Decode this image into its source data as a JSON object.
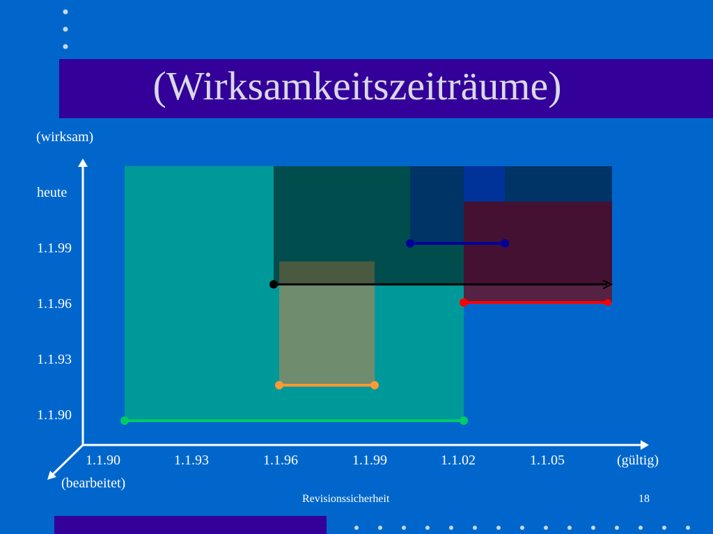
{
  "slide": {
    "title": "(Wirksamkeitszeiträume)",
    "footer_text": "Revisionssicherheit",
    "page_number": "18"
  },
  "y_axis": {
    "label": "(wirksam)",
    "ticks": [
      "heute",
      "1.1.99",
      "1.1.96",
      "1.1.93",
      "1.1.90"
    ]
  },
  "x_axis": {
    "label": "(gültig)",
    "ticks": [
      "1.1.90",
      "1.1.93",
      "1.1.96",
      "1.1.99",
      "1.1.02",
      "1.1.05"
    ]
  },
  "diagonal_axis": {
    "label": "(bearbeitet)"
  },
  "colors": {
    "background": "#0066cc",
    "title_band": "#330099",
    "region_teal": "#009999",
    "region_dark_green": "#004d4d",
    "region_navy": "#003366",
    "region_indigo": "#003399",
    "region_maroon": "#441133",
    "region_olive": "#6f8c6f",
    "line_green": "#00cc66",
    "line_orange": "#ff9933",
    "line_black": "#000000",
    "line_red": "#ff0000",
    "line_blue": "#000099"
  }
}
